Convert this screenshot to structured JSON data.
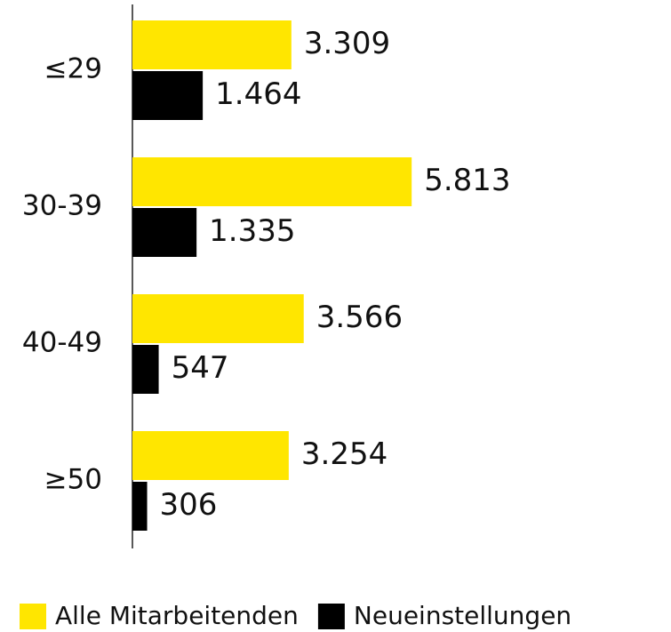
{
  "chart_data": {
    "type": "barh",
    "categories": [
      "≤29",
      "30-39",
      "40-49",
      "≥50"
    ],
    "series": [
      {
        "name": "Alle Mitarbeitenden",
        "color": "#ffe600",
        "values": [
          3309,
          5813,
          3566,
          3254
        ],
        "value_labels": [
          "3.309",
          "5.813",
          "3.566",
          "3.254"
        ]
      },
      {
        "name": "Neueinstellungen",
        "color": "#000000",
        "values": [
          1464,
          1335,
          547,
          306
        ],
        "value_labels": [
          "1.464",
          "1.335",
          "547",
          "306"
        ]
      }
    ]
  }
}
